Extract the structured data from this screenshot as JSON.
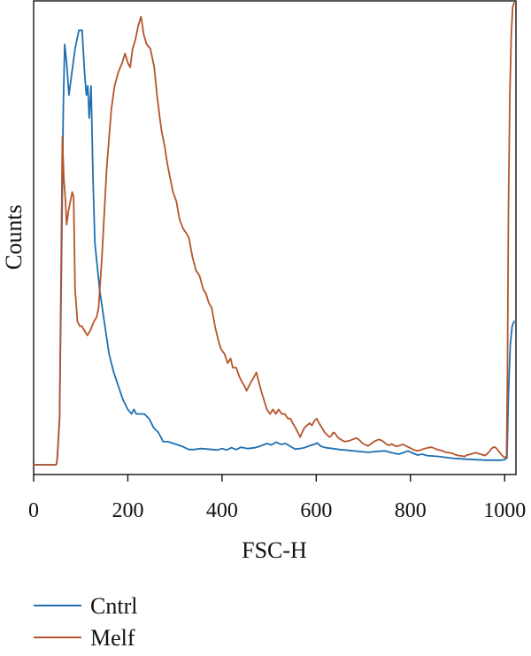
{
  "chart_data": {
    "type": "line",
    "title": "",
    "xlabel": "FSC-H",
    "ylabel": "Counts",
    "xlim": [
      0,
      1024
    ],
    "ylim": [
      0,
      100
    ],
    "x_ticks": [
      0,
      200,
      400,
      600,
      800,
      1000
    ],
    "x_tick_labels": [
      "0",
      "200",
      "400",
      "600",
      "800",
      "1000"
    ],
    "grid": false,
    "legend_position": "bottom-left",
    "series": [
      {
        "name": "Cntrl",
        "color": "#1f6fb2",
        "points": [
          [
            0,
            0
          ],
          [
            48,
            0
          ],
          [
            50,
            1
          ],
          [
            55,
            10
          ],
          [
            60,
            50
          ],
          [
            63,
            77
          ],
          [
            66,
            91
          ],
          [
            70,
            87
          ],
          [
            75,
            80
          ],
          [
            80,
            84
          ],
          [
            88,
            90
          ],
          [
            96,
            94
          ],
          [
            103,
            94
          ],
          [
            108,
            85
          ],
          [
            112,
            80
          ],
          [
            115,
            82
          ],
          [
            118,
            75
          ],
          [
            122,
            82
          ],
          [
            126,
            62
          ],
          [
            130,
            48
          ],
          [
            135,
            43
          ],
          [
            140,
            38
          ],
          [
            150,
            31
          ],
          [
            160,
            24
          ],
          [
            170,
            20
          ],
          [
            180,
            17
          ],
          [
            190,
            14
          ],
          [
            200,
            12
          ],
          [
            208,
            11
          ],
          [
            213,
            12
          ],
          [
            218,
            11
          ],
          [
            225,
            11
          ],
          [
            235,
            11
          ],
          [
            245,
            10
          ],
          [
            255,
            8
          ],
          [
            265,
            7
          ],
          [
            275,
            5
          ],
          [
            285,
            5
          ],
          [
            300,
            4.5
          ],
          [
            315,
            4
          ],
          [
            325,
            3.5
          ],
          [
            330,
            3.3
          ],
          [
            340,
            3.3
          ],
          [
            355,
            3.5
          ],
          [
            370,
            3.4
          ],
          [
            390,
            3.2
          ],
          [
            400,
            3.5
          ],
          [
            410,
            3.2
          ],
          [
            420,
            3.7
          ],
          [
            430,
            3.3
          ],
          [
            440,
            3.8
          ],
          [
            455,
            3.5
          ],
          [
            470,
            3.7
          ],
          [
            480,
            4.0
          ],
          [
            495,
            4.6
          ],
          [
            505,
            4.3
          ],
          [
            515,
            4.9
          ],
          [
            525,
            4.4
          ],
          [
            535,
            4.6
          ],
          [
            545,
            4.0
          ],
          [
            555,
            3.4
          ],
          [
            565,
            3.5
          ],
          [
            575,
            3.7
          ],
          [
            585,
            4.1
          ],
          [
            595,
            4.4
          ],
          [
            602,
            4.7
          ],
          [
            610,
            4.0
          ],
          [
            620,
            3.7
          ],
          [
            635,
            3.5
          ],
          [
            650,
            3.3
          ],
          [
            670,
            3.1
          ],
          [
            690,
            2.9
          ],
          [
            710,
            2.7
          ],
          [
            730,
            2.9
          ],
          [
            745,
            3.0
          ],
          [
            760,
            2.6
          ],
          [
            775,
            2.3
          ],
          [
            782,
            2.5
          ],
          [
            795,
            3.0
          ],
          [
            805,
            2.5
          ],
          [
            815,
            2.1
          ],
          [
            825,
            2.3
          ],
          [
            835,
            2.0
          ],
          [
            860,
            1.8
          ],
          [
            890,
            1.4
          ],
          [
            920,
            1.2
          ],
          [
            960,
            1.0
          ],
          [
            990,
            1.0
          ],
          [
            1000,
            1.1
          ],
          [
            1005,
            1.5
          ],
          [
            1008,
            15
          ],
          [
            1012,
            26
          ],
          [
            1016,
            30
          ],
          [
            1020,
            31
          ]
        ]
      },
      {
        "name": "Melf",
        "color": "#b5552a",
        "points": [
          [
            0,
            0
          ],
          [
            48,
            0
          ],
          [
            50,
            1
          ],
          [
            55,
            10
          ],
          [
            58,
            40
          ],
          [
            61,
            71
          ],
          [
            64,
            62
          ],
          [
            67,
            58
          ],
          [
            70,
            52
          ],
          [
            74,
            55
          ],
          [
            78,
            57
          ],
          [
            82,
            59
          ],
          [
            85,
            58
          ],
          [
            88,
            38
          ],
          [
            93,
            31
          ],
          [
            98,
            30
          ],
          [
            102,
            30
          ],
          [
            108,
            29
          ],
          [
            114,
            28
          ],
          [
            120,
            29
          ],
          [
            124,
            30
          ],
          [
            128,
            31
          ],
          [
            134,
            32
          ],
          [
            138,
            34
          ],
          [
            145,
            45
          ],
          [
            155,
            64
          ],
          [
            165,
            77
          ],
          [
            172,
            82
          ],
          [
            180,
            85
          ],
          [
            188,
            87
          ],
          [
            194,
            89
          ],
          [
            200,
            87
          ],
          [
            205,
            86
          ],
          [
            210,
            90
          ],
          [
            216,
            92
          ],
          [
            222,
            95
          ],
          [
            228,
            97
          ],
          [
            234,
            93
          ],
          [
            240,
            91
          ],
          [
            248,
            90
          ],
          [
            256,
            86
          ],
          [
            262,
            80
          ],
          [
            268,
            75
          ],
          [
            272,
            72
          ],
          [
            278,
            69
          ],
          [
            284,
            65
          ],
          [
            290,
            62
          ],
          [
            296,
            59
          ],
          [
            303,
            57
          ],
          [
            310,
            53
          ],
          [
            318,
            51
          ],
          [
            325,
            50
          ],
          [
            330,
            49
          ],
          [
            337,
            45
          ],
          [
            345,
            42
          ],
          [
            352,
            41
          ],
          [
            360,
            38
          ],
          [
            366,
            37
          ],
          [
            372,
            35
          ],
          [
            378,
            34
          ],
          [
            385,
            30
          ],
          [
            392,
            27
          ],
          [
            398,
            25
          ],
          [
            405,
            24
          ],
          [
            412,
            22
          ],
          [
            418,
            23
          ],
          [
            423,
            21
          ],
          [
            430,
            21
          ],
          [
            437,
            19
          ],
          [
            442,
            18
          ],
          [
            448,
            17
          ],
          [
            452,
            16
          ],
          [
            457,
            17
          ],
          [
            462,
            18
          ],
          [
            468,
            19
          ],
          [
            473,
            20
          ],
          [
            478,
            18
          ],
          [
            483,
            16
          ],
          [
            489,
            14
          ],
          [
            495,
            12
          ],
          [
            502,
            11
          ],
          [
            508,
            12
          ],
          [
            514,
            11
          ],
          [
            520,
            12
          ],
          [
            527,
            11
          ],
          [
            533,
            11
          ],
          [
            540,
            10
          ],
          [
            545,
            10
          ],
          [
            550,
            9
          ],
          [
            556,
            8
          ],
          [
            561,
            7
          ],
          [
            566,
            6
          ],
          [
            570,
            7
          ],
          [
            575,
            8
          ],
          [
            580,
            8.5
          ],
          [
            586,
            9
          ],
          [
            591,
            8.5
          ],
          [
            596,
            9.5
          ],
          [
            601,
            10
          ],
          [
            606,
            9
          ],
          [
            612,
            8
          ],
          [
            618,
            7
          ],
          [
            623,
            6.5
          ],
          [
            628,
            6
          ],
          [
            632,
            6.3
          ],
          [
            636,
            7
          ],
          [
            640,
            6.8
          ],
          [
            645,
            6
          ],
          [
            650,
            5.6
          ],
          [
            655,
            5.3
          ],
          [
            660,
            5
          ],
          [
            665,
            5.1
          ],
          [
            670,
            5.2
          ],
          [
            675,
            5.4
          ],
          [
            680,
            5.6
          ],
          [
            685,
            5.8
          ],
          [
            688,
            5.6
          ],
          [
            692,
            5.3
          ],
          [
            698,
            4.7
          ],
          [
            705,
            4.3
          ],
          [
            710,
            4.1
          ],
          [
            716,
            4.5
          ],
          [
            722,
            5
          ],
          [
            728,
            5.3
          ],
          [
            734,
            5.5
          ],
          [
            740,
            5.2
          ],
          [
            745,
            4.8
          ],
          [
            750,
            4.4
          ],
          [
            755,
            4.2
          ],
          [
            760,
            4.5
          ],
          [
            765,
            4.2
          ],
          [
            770,
            4.0
          ],
          [
            775,
            4.1
          ],
          [
            780,
            4.3
          ],
          [
            785,
            4.4
          ],
          [
            790,
            4.1
          ],
          [
            796,
            3.8
          ],
          [
            802,
            3.5
          ],
          [
            808,
            3.2
          ],
          [
            815,
            3.0
          ],
          [
            822,
            3.2
          ],
          [
            830,
            3.5
          ],
          [
            838,
            3.7
          ],
          [
            845,
            3.8
          ],
          [
            852,
            3.5
          ],
          [
            860,
            3.2
          ],
          [
            868,
            3.0
          ],
          [
            875,
            2.7
          ],
          [
            882,
            2.6
          ],
          [
            888,
            2.5
          ],
          [
            895,
            2.2
          ],
          [
            902,
            2.0
          ],
          [
            910,
            1.9
          ],
          [
            915,
            1.8
          ],
          [
            920,
            2.1
          ],
          [
            928,
            2.3
          ],
          [
            935,
            2.5
          ],
          [
            940,
            2.6
          ],
          [
            945,
            2.4
          ],
          [
            952,
            2.2
          ],
          [
            958,
            2.0
          ],
          [
            962,
            2.3
          ],
          [
            968,
            2.9
          ],
          [
            972,
            3.5
          ],
          [
            976,
            3.8
          ],
          [
            980,
            3.8
          ],
          [
            984,
            3.4
          ],
          [
            988,
            2.9
          ],
          [
            993,
            2.2
          ],
          [
            998,
            1.7
          ],
          [
            1002,
            1.5
          ],
          [
            1004,
            2
          ],
          [
            1006,
            20
          ],
          [
            1008,
            55
          ],
          [
            1011,
            80
          ],
          [
            1014,
            93
          ],
          [
            1017,
            99
          ],
          [
            1020,
            100
          ]
        ]
      }
    ]
  }
}
